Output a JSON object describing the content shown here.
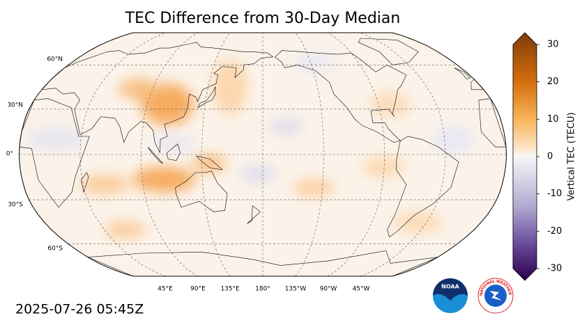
{
  "title": "TEC Difference from 30-Day Median",
  "map": {
    "lat_labels": [
      "60°N",
      "30°N",
      "0°",
      "30°S",
      "60°S"
    ],
    "lon_labels": [
      "45°E",
      "90°E",
      "135°E",
      "180°",
      "135°W",
      "90°W",
      "45°W"
    ]
  },
  "colorbar": {
    "label": "Vertical TEC (TECU)",
    "range": [
      -30,
      30
    ],
    "ticks": [
      30,
      20,
      10,
      0,
      -10,
      -20,
      -30
    ]
  },
  "timestamp": "2025-07-26 05:45Z",
  "logos": {
    "noaa": "NOAA",
    "nws": "NATIONAL WEATHER SERVICE"
  }
}
